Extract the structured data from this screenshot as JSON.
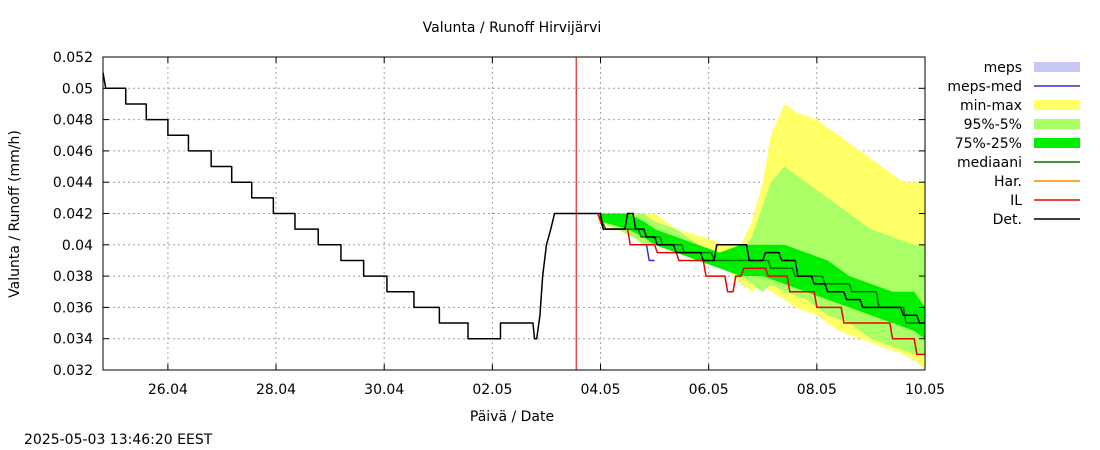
{
  "chart_data": {
    "type": "line",
    "title": "Valunta / Runoff  Hirvijärvi",
    "xlabel": "Päivä / Date",
    "ylabel": "Valunta / Runoff (mm/h)",
    "timestamp": "2025-05-03 13:46:20 EEST",
    "grid": true,
    "legend_position": "right",
    "x_unit": "days since 25.04 00:00",
    "xlim": [
      -0.2,
      15.0
    ],
    "ylim": [
      0.032,
      0.052
    ],
    "x_ticks": [
      {
        "x": 1,
        "label": "26.04"
      },
      {
        "x": 3,
        "label": "28.04"
      },
      {
        "x": 5,
        "label": "30.04"
      },
      {
        "x": 7,
        "label": "02.05"
      },
      {
        "x": 9,
        "label": "04.05"
      },
      {
        "x": 11,
        "label": "06.05"
      },
      {
        "x": 13,
        "label": "08.05"
      },
      {
        "x": 15,
        "label": "10.05"
      }
    ],
    "y_ticks": [
      "0.032",
      "0.034",
      "0.036",
      "0.038",
      "0.04",
      "0.042",
      "0.044",
      "0.046",
      "0.048",
      "0.05",
      "0.052"
    ],
    "forecast_start_x": 8.55,
    "legend": [
      {
        "key": "meps",
        "label": "meps",
        "color": "#c8c8f4",
        "kind": "band"
      },
      {
        "key": "meps_med",
        "label": "meps-med",
        "color": "#3232c8",
        "kind": "line"
      },
      {
        "key": "minmax",
        "label": "min-max",
        "color": "#ffff66",
        "kind": "band"
      },
      {
        "key": "p95_5",
        "label": "95%-5%",
        "color": "#aaff66",
        "kind": "band"
      },
      {
        "key": "p75_25",
        "label": "75%-25%",
        "color": "#00ee00",
        "kind": "band"
      },
      {
        "key": "median",
        "label": "mediaani",
        "color": "#007700",
        "kind": "line"
      },
      {
        "key": "har",
        "label": "Har.",
        "color": "#ff8800",
        "kind": "line"
      },
      {
        "key": "il",
        "label": "IL",
        "color": "#ee0000",
        "kind": "line"
      },
      {
        "key": "det",
        "label": "Det.",
        "color": "#000000",
        "kind": "line"
      }
    ],
    "bands": {
      "minmax": {
        "x": [
          8.95,
          9.6,
          9.75,
          10.0,
          10.4,
          10.9,
          11.3,
          11.6,
          11.8,
          12.0,
          12.15,
          12.4,
          12.6,
          13.0,
          13.4,
          13.8,
          14.2,
          14.6,
          14.85,
          15.0
        ],
        "low": [
          0.0415,
          0.0405,
          0.0405,
          0.04,
          0.0395,
          0.039,
          0.0385,
          0.0375,
          0.037,
          0.0375,
          0.037,
          0.0365,
          0.036,
          0.0355,
          0.0345,
          0.034,
          0.0335,
          0.033,
          0.0325,
          0.032
        ],
        "high": [
          0.042,
          0.042,
          0.042,
          0.042,
          0.041,
          0.0405,
          0.04,
          0.04,
          0.0415,
          0.044,
          0.047,
          0.049,
          0.0485,
          0.048,
          0.047,
          0.046,
          0.045,
          0.044,
          0.044,
          0.044
        ]
      },
      "p95_5": {
        "x": [
          9.0,
          9.6,
          9.8,
          10.0,
          10.4,
          10.8,
          11.2,
          11.6,
          11.8,
          12.0,
          12.15,
          12.4,
          12.8,
          13.2,
          13.6,
          14.0,
          14.4,
          14.8,
          15.0
        ],
        "low": [
          0.0415,
          0.0405,
          0.04,
          0.04,
          0.0395,
          0.039,
          0.0385,
          0.038,
          0.0375,
          0.037,
          0.0375,
          0.037,
          0.0365,
          0.0355,
          0.035,
          0.034,
          0.0335,
          0.033,
          0.033
        ],
        "high": [
          0.042,
          0.042,
          0.042,
          0.0415,
          0.041,
          0.04,
          0.0395,
          0.0395,
          0.0405,
          0.0425,
          0.044,
          0.045,
          0.044,
          0.043,
          0.042,
          0.041,
          0.0405,
          0.04,
          0.04
        ]
      },
      "p75_25": {
        "x": [
          9.0,
          9.5,
          9.8,
          10.0,
          10.4,
          10.8,
          11.2,
          11.6,
          12.0,
          12.4,
          12.8,
          13.2,
          13.6,
          14.0,
          14.4,
          14.8,
          15.0
        ],
        "low": [
          0.0415,
          0.041,
          0.0405,
          0.04,
          0.0395,
          0.039,
          0.0385,
          0.038,
          0.038,
          0.0375,
          0.037,
          0.0365,
          0.036,
          0.0355,
          0.035,
          0.0345,
          0.034
        ],
        "high": [
          0.042,
          0.042,
          0.0415,
          0.041,
          0.0405,
          0.04,
          0.0395,
          0.04,
          0.04,
          0.04,
          0.0395,
          0.039,
          0.038,
          0.0375,
          0.037,
          0.037,
          0.036
        ]
      }
    },
    "lines": {
      "det": {
        "x": [
          -0.2,
          -0.15,
          -0.15,
          0.22,
          0.22,
          0.6,
          0.6,
          1.0,
          1.0,
          1.38,
          1.38,
          1.8,
          1.8,
          2.18,
          2.18,
          2.55,
          2.55,
          2.95,
          2.95,
          3.35,
          3.35,
          3.78,
          3.78,
          4.2,
          4.2,
          4.62,
          4.62,
          5.05,
          5.05,
          5.55,
          5.55,
          6.02,
          6.02,
          6.55,
          6.55,
          7.15,
          7.15,
          7.75,
          7.78,
          7.82,
          7.88,
          7.93,
          8.0,
          8.08,
          8.15,
          8.6,
          9.0,
          9.05,
          9.45,
          9.5,
          9.6,
          9.65,
          9.8,
          9.85,
          10.0,
          10.05,
          10.35,
          10.4,
          10.85,
          10.9,
          11.1,
          11.15,
          11.4,
          11.45,
          11.7,
          11.75,
          12.0,
          12.05,
          12.3,
          12.35,
          12.6,
          12.65,
          12.9,
          12.95,
          13.15,
          13.2,
          13.5,
          13.55,
          13.8,
          13.85,
          14.2,
          14.25,
          14.55,
          14.6,
          14.85,
          14.9,
          15.0
        ],
        "y": [
          0.051,
          0.05,
          0.05,
          0.05,
          0.049,
          0.049,
          0.048,
          0.048,
          0.047,
          0.047,
          0.046,
          0.046,
          0.045,
          0.045,
          0.044,
          0.044,
          0.043,
          0.043,
          0.042,
          0.042,
          0.041,
          0.041,
          0.04,
          0.04,
          0.039,
          0.039,
          0.038,
          0.038,
          0.037,
          0.037,
          0.036,
          0.036,
          0.035,
          0.035,
          0.034,
          0.034,
          0.035,
          0.035,
          0.034,
          0.034,
          0.0355,
          0.038,
          0.04,
          0.041,
          0.042,
          0.042,
          0.042,
          0.041,
          0.041,
          0.042,
          0.042,
          0.041,
          0.041,
          0.0405,
          0.0405,
          0.04,
          0.04,
          0.0395,
          0.0395,
          0.039,
          0.039,
          0.04,
          0.04,
          0.04,
          0.04,
          0.039,
          0.039,
          0.0395,
          0.0395,
          0.039,
          0.039,
          0.038,
          0.038,
          0.0375,
          0.0375,
          0.037,
          0.037,
          0.0365,
          0.0365,
          0.036,
          0.036,
          0.036,
          0.036,
          0.0355,
          0.0355,
          0.035,
          0.035
        ]
      },
      "il": {
        "x": [
          8.95,
          9.05,
          9.5,
          9.55,
          10.0,
          10.05,
          10.4,
          10.45,
          10.9,
          10.95,
          11.3,
          11.35,
          11.45,
          11.5,
          11.6,
          11.65,
          12.05,
          12.1,
          12.45,
          12.5,
          12.95,
          13.0,
          13.45,
          13.5,
          13.9,
          13.95,
          14.35,
          14.4,
          14.8,
          14.85,
          15.0
        ],
        "y": [
          0.042,
          0.041,
          0.041,
          0.04,
          0.04,
          0.0395,
          0.0395,
          0.039,
          0.039,
          0.038,
          0.038,
          0.037,
          0.037,
          0.038,
          0.038,
          0.0385,
          0.0385,
          0.038,
          0.038,
          0.037,
          0.037,
          0.036,
          0.036,
          0.035,
          0.035,
          0.035,
          0.035,
          0.034,
          0.034,
          0.033,
          0.033
        ]
      },
      "median": {
        "x": [
          8.95,
          9.1,
          9.7,
          9.75,
          10.1,
          10.15,
          10.5,
          10.55,
          11.05,
          11.1,
          11.6,
          11.65,
          12.1,
          12.15,
          12.55,
          12.6,
          13.1,
          13.15,
          13.6,
          13.65,
          14.1,
          14.15,
          14.6,
          14.65,
          15.0
        ],
        "y": [
          0.042,
          0.041,
          0.041,
          0.0405,
          0.0405,
          0.04,
          0.04,
          0.0395,
          0.0395,
          0.039,
          0.039,
          0.039,
          0.039,
          0.0385,
          0.0385,
          0.038,
          0.038,
          0.0375,
          0.0375,
          0.037,
          0.037,
          0.036,
          0.036,
          0.035,
          0.035
        ]
      },
      "meps_med": {
        "x": [
          9.85,
          9.9,
          10.0
        ],
        "y": [
          0.04,
          0.039,
          0.039
        ]
      }
    }
  }
}
